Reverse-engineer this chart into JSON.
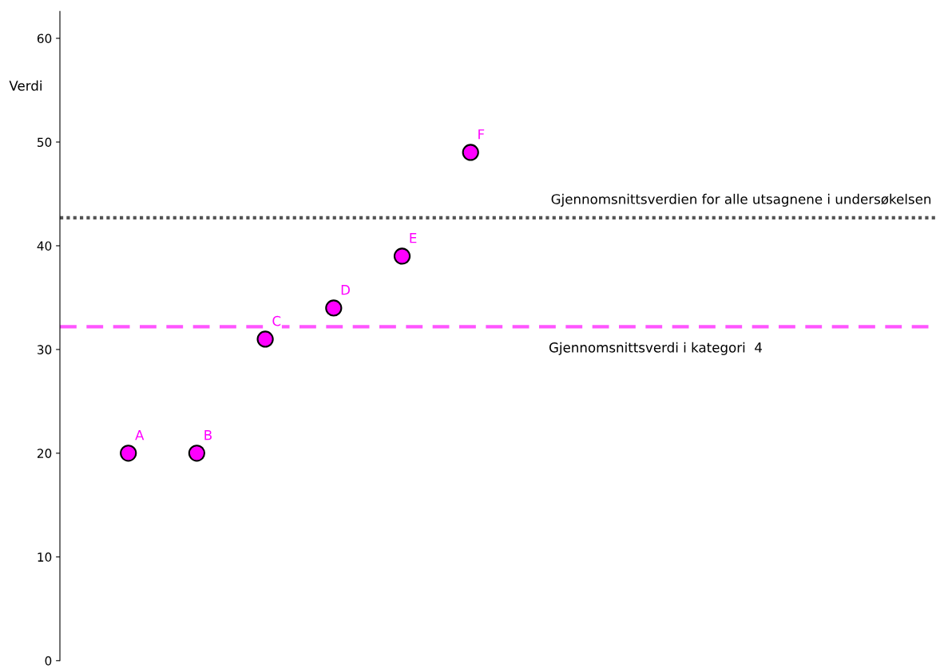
{
  "chart_data": {
    "type": "scatter",
    "ylabel": "Verdi",
    "categories": [
      "A",
      "B",
      "C",
      "D",
      "E",
      "F"
    ],
    "series": [
      {
        "color": "#ff00ff",
        "values": [
          20,
          20,
          31,
          34,
          39,
          49
        ]
      }
    ],
    "ylim": [
      0,
      62.6
    ],
    "yticks": [
      0,
      10,
      20,
      30,
      40,
      50,
      60
    ],
    "grid": false,
    "marker": "circle",
    "tick_labels": "y",
    "ref_lines": [
      {
        "axis": "y",
        "value": 42.7,
        "label": "Gjennomsnittsverdien for alle utsagnene i undersøkelsen",
        "color": "#555555",
        "line_style": "dotted"
      },
      {
        "axis": "y",
        "value": 32.2,
        "label": "Gjennomsnittsverdi i kategori  4",
        "color": "#ff55ff",
        "line_style": "dashed"
      }
    ]
  }
}
